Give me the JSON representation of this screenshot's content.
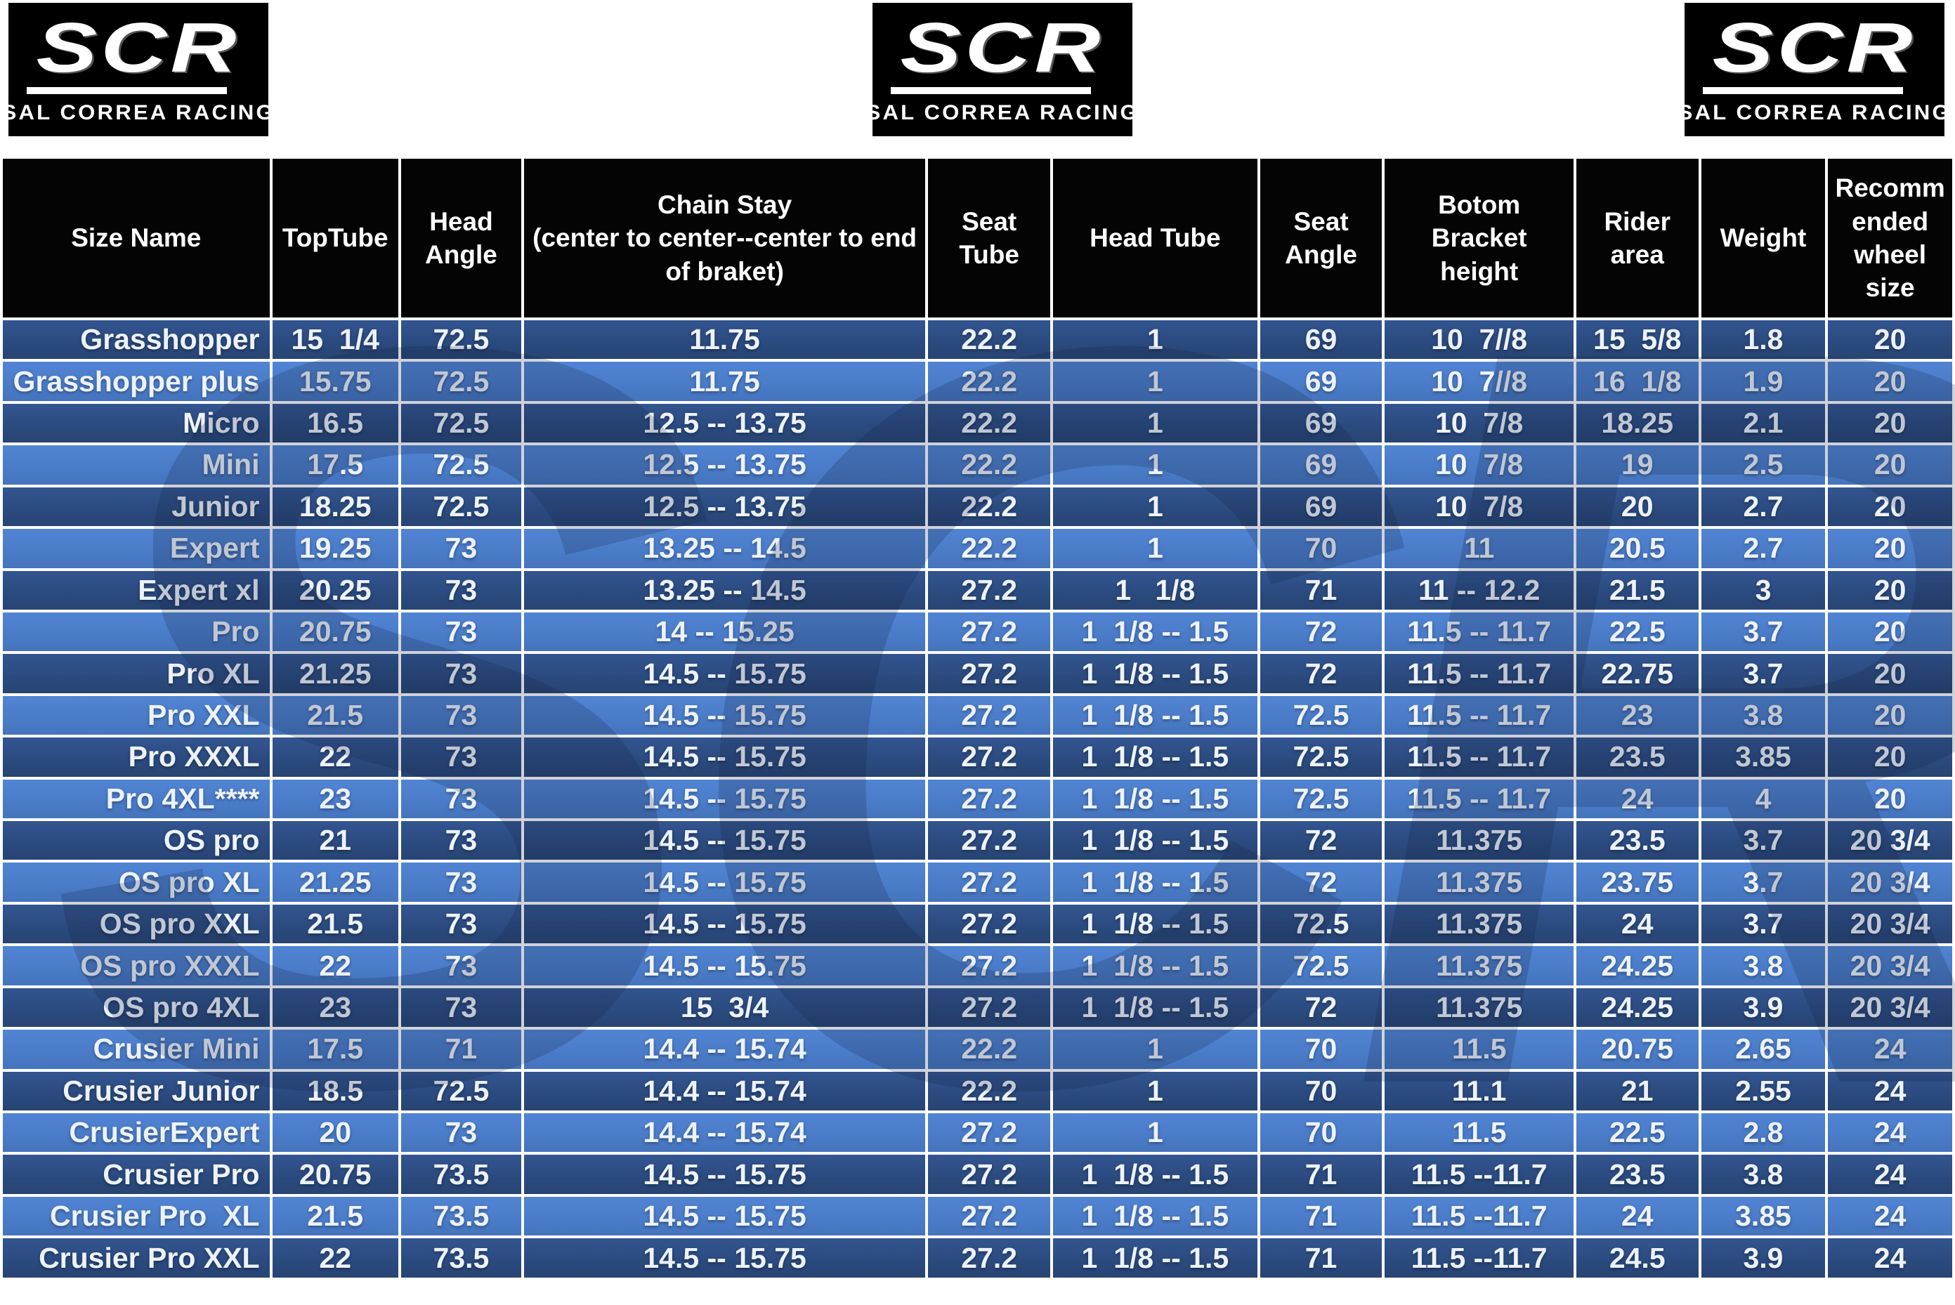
{
  "brand": {
    "logo_text": "SCR",
    "logo_subtext": "SAL CORREA RACING"
  },
  "watermark_text": "SCR",
  "colors": {
    "header_bg": "#040404",
    "row_dark": "#2b4b80",
    "row_light": "#4a7cc9",
    "grid_line": "#ffffff",
    "cell_text": "#edf2fb",
    "watermark": "#101c3a"
  },
  "table": {
    "columns": [
      "Size Name",
      "TopTube",
      "Head Angle",
      "Chain Stay\n(center to center--center to end of braket)",
      "Seat Tube",
      "Head Tube",
      "Seat Angle",
      "Botom Bracket height",
      "Rider area",
      "Weight",
      "Recomm ended wheel size"
    ],
    "rows": [
      [
        "Grasshopper",
        "15  1/4",
        "72.5",
        "11.75",
        "22.2",
        "1",
        "69",
        "10  7//8",
        "15  5/8",
        "1.8",
        "20"
      ],
      [
        "Grasshopper plus",
        "15.75",
        "72.5",
        "11.75",
        "22.2",
        "1",
        "69",
        "10  7//8",
        "16  1/8",
        "1.9",
        "20"
      ],
      [
        "Micro",
        "16.5",
        "72.5",
        "12.5 -- 13.75",
        "22.2",
        "1",
        "69",
        "10  7/8",
        "18.25",
        "2.1",
        "20"
      ],
      [
        "Mini",
        "17.5",
        "72.5",
        "12.5 -- 13.75",
        "22.2",
        "1",
        "69",
        "10  7/8",
        "19",
        "2.5",
        "20"
      ],
      [
        "Junior",
        "18.25",
        "72.5",
        "12.5 -- 13.75",
        "22.2",
        "1",
        "69",
        "10  7/8",
        "20",
        "2.7",
        "20"
      ],
      [
        "Expert",
        "19.25",
        "73",
        "13.25 -- 14.5",
        "22.2",
        "1",
        "70",
        "11",
        "20.5",
        "2.7",
        "20"
      ],
      [
        "Expert xl",
        "20.25",
        "73",
        "13.25 -- 14.5",
        "27.2",
        "1   1/8",
        "71",
        "11 -- 12.2",
        "21.5",
        "3",
        "20"
      ],
      [
        "Pro",
        "20.75",
        "73",
        "14 -- 15.25",
        "27.2",
        "1  1/8 -- 1.5",
        "72",
        "11.5 -- 11.7",
        "22.5",
        "3.7",
        "20"
      ],
      [
        "Pro XL",
        "21.25",
        "73",
        "14.5 -- 15.75",
        "27.2",
        "1  1/8 -- 1.5",
        "72",
        "11.5 -- 11.7",
        "22.75",
        "3.7",
        "20"
      ],
      [
        "Pro XXL",
        "21.5",
        "73",
        "14.5 -- 15.75",
        "27.2",
        "1  1/8 -- 1.5",
        "72.5",
        "11.5 -- 11.7",
        "23",
        "3.8",
        "20"
      ],
      [
        "Pro XXXL",
        "22",
        "73",
        "14.5 -- 15.75",
        "27.2",
        "1  1/8 -- 1.5",
        "72.5",
        "11.5 -- 11.7",
        "23.5",
        "3.85",
        "20"
      ],
      [
        "Pro 4XL****",
        "23",
        "73",
        "14.5 -- 15.75",
        "27.2",
        "1  1/8 -- 1.5",
        "72.5",
        "11.5 -- 11.7",
        "24",
        "4",
        "20"
      ],
      [
        "OS pro",
        "21",
        "73",
        "14.5 -- 15.75",
        "27.2",
        "1  1/8 -- 1.5",
        "72",
        "11.375",
        "23.5",
        "3.7",
        "20 3/4"
      ],
      [
        "OS pro XL",
        "21.25",
        "73",
        "14.5 -- 15.75",
        "27.2",
        "1  1/8 -- 1.5",
        "72",
        "11.375",
        "23.75",
        "3.7",
        "20 3/4"
      ],
      [
        "OS pro XXL",
        "21.5",
        "73",
        "14.5 -- 15.75",
        "27.2",
        "1  1/8 -- 1.5",
        "72.5",
        "11.375",
        "24",
        "3.7",
        "20 3/4"
      ],
      [
        "OS pro XXXL",
        "22",
        "73",
        "14.5 -- 15.75",
        "27.2",
        "1  1/8 -- 1.5",
        "72.5",
        "11.375",
        "24.25",
        "3.8",
        "20 3/4"
      ],
      [
        "OS pro 4XL",
        "23",
        "73",
        "15  3/4",
        "27.2",
        "1  1/8 -- 1.5",
        "72",
        "11.375",
        "24.25",
        "3.9",
        "20 3/4"
      ],
      [
        "Crusier Mini",
        "17.5",
        "71",
        "14.4 -- 15.74",
        "22.2",
        "1",
        "70",
        "11.5",
        "20.75",
        "2.65",
        "24"
      ],
      [
        "Crusier Junior",
        "18.5",
        "72.5",
        "14.4 -- 15.74",
        "22.2",
        "1",
        "70",
        "11.1",
        "21",
        "2.55",
        "24"
      ],
      [
        "CrusierExpert",
        "20",
        "73",
        "14.4 -- 15.74",
        "27.2",
        "1",
        "70",
        "11.5",
        "22.5",
        "2.8",
        "24"
      ],
      [
        "Crusier Pro",
        "20.75",
        "73.5",
        "14.5 -- 15.75",
        "27.2",
        "1  1/8 -- 1.5",
        "71",
        "11.5 --11.7",
        "23.5",
        "3.8",
        "24"
      ],
      [
        "Crusier Pro  XL",
        "21.5",
        "73.5",
        "14.5 -- 15.75",
        "27.2",
        "1  1/8 -- 1.5",
        "71",
        "11.5 --11.7",
        "24",
        "3.85",
        "24"
      ],
      [
        "Crusier Pro XXL",
        "22",
        "73.5",
        "14.5 -- 15.75",
        "27.2",
        "1  1/8 -- 1.5",
        "71",
        "11.5 --11.7",
        "24.5",
        "3.9",
        "24"
      ]
    ]
  }
}
